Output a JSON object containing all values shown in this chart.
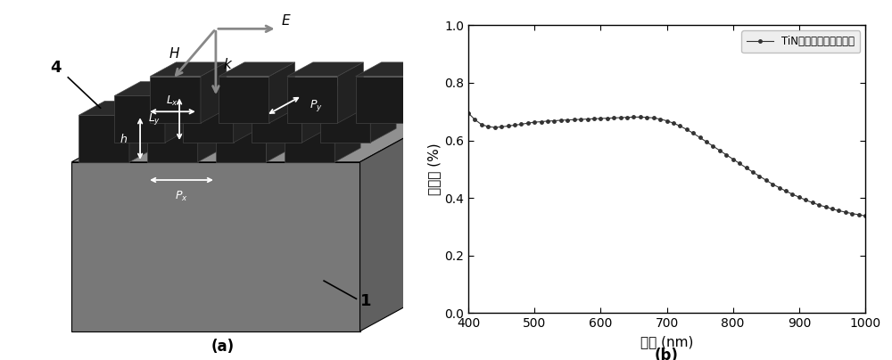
{
  "wavelength": [
    400,
    410,
    420,
    430,
    440,
    450,
    460,
    470,
    480,
    490,
    500,
    510,
    520,
    530,
    540,
    550,
    560,
    570,
    580,
    590,
    600,
    610,
    620,
    630,
    640,
    650,
    660,
    670,
    680,
    690,
    700,
    710,
    720,
    730,
    740,
    750,
    760,
    770,
    780,
    790,
    800,
    810,
    820,
    830,
    840,
    850,
    860,
    870,
    880,
    890,
    900,
    910,
    920,
    930,
    940,
    950,
    960,
    970,
    980,
    990,
    1000
  ],
  "absorption": [
    0.695,
    0.672,
    0.655,
    0.648,
    0.645,
    0.647,
    0.65,
    0.653,
    0.656,
    0.66,
    0.663,
    0.665,
    0.667,
    0.668,
    0.67,
    0.671,
    0.672,
    0.673,
    0.674,
    0.675,
    0.676,
    0.677,
    0.678,
    0.679,
    0.68,
    0.681,
    0.681,
    0.68,
    0.678,
    0.674,
    0.668,
    0.66,
    0.65,
    0.638,
    0.625,
    0.61,
    0.595,
    0.58,
    0.565,
    0.55,
    0.535,
    0.52,
    0.505,
    0.49,
    0.476,
    0.462,
    0.448,
    0.436,
    0.424,
    0.413,
    0.403,
    0.393,
    0.384,
    0.376,
    0.369,
    0.362,
    0.356,
    0.351,
    0.346,
    0.342,
    0.338
  ],
  "xlabel": "波长 (nm)",
  "ylabel": "吸收率 (%)",
  "xlim": [
    400,
    1000
  ],
  "ylim": [
    0.0,
    1.0
  ],
  "xticks": [
    400,
    500,
    600,
    700,
    800,
    900,
    1000
  ],
  "yticks": [
    0.0,
    0.2,
    0.4,
    0.6,
    0.8,
    1.0
  ],
  "legend_label": "TiN长方体阵列结构吸收",
  "line_color": "#333333",
  "marker": "o",
  "marker_size": 2.5,
  "label_a": "(a)",
  "label_b": "(b)",
  "bg_color": "#ffffff",
  "substrate_top": "#909090",
  "substrate_side": "#707070",
  "substrate_light": "#a8a8a8",
  "cube_top": "#2a2a2a",
  "cube_front": "#1a1a1a",
  "cube_right": "#222222",
  "arrow_gray": "#888888"
}
